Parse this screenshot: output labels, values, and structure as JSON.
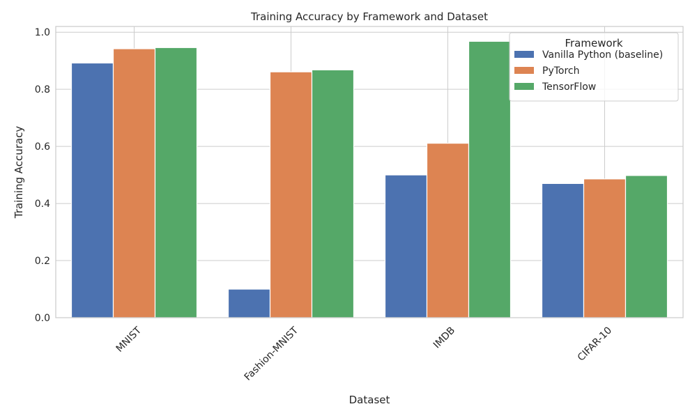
{
  "chart_data": {
    "type": "bar",
    "title": "Training Accuracy by Framework and Dataset",
    "xlabel": "Dataset",
    "ylabel": "Training Accuracy",
    "categories": [
      "MNIST",
      "Fashion-MNIST",
      "IMDB",
      "CIFAR-10"
    ],
    "ylim": [
      0,
      1.02
    ],
    "yticks": [
      0.0,
      0.2,
      0.4,
      0.6,
      0.8,
      1.0
    ],
    "ytick_labels": [
      "0.0",
      "0.2",
      "0.4",
      "0.6",
      "0.8",
      "1.0"
    ],
    "grid": true,
    "legend": {
      "title": "Framework",
      "placement": "top-right"
    },
    "series": [
      {
        "name": "Vanilla Python (baseline)",
        "color": "#4c72b0",
        "values": [
          0.892,
          0.1,
          0.5,
          0.47
        ]
      },
      {
        "name": "PyTorch",
        "color": "#dd8452",
        "values": [
          0.942,
          0.861,
          0.611,
          0.486
        ]
      },
      {
        "name": "TensorFlow",
        "color": "#55a868",
        "values": [
          0.946,
          0.868,
          0.968,
          0.498
        ]
      }
    ]
  }
}
